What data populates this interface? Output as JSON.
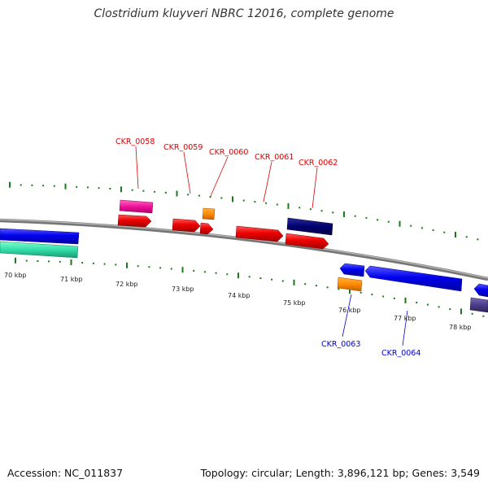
{
  "title": "Clostridium kluyveri NBRC 12016, complete genome",
  "footer": {
    "accession": "Accession: NC_011837",
    "summary": "Topology: circular; Length: 3,896,121 bp; Genes: 3,549"
  },
  "scale_labels": [
    "70 kbp",
    "71 kbp",
    "72 kbp",
    "73 kbp",
    "74 kbp",
    "75 kbp",
    "76 kbp",
    "77 kbp",
    "78 kbp"
  ],
  "gene_labels": [
    {
      "name": "CKR_0058",
      "strand": "forward",
      "color": "#dd0000"
    },
    {
      "name": "CKR_0059",
      "strand": "forward",
      "color": "#dd0000"
    },
    {
      "name": "CKR_0060",
      "strand": "forward",
      "color": "#dd0000"
    },
    {
      "name": "CKR_0061",
      "strand": "forward",
      "color": "#dd0000"
    },
    {
      "name": "CKR_0062",
      "strand": "forward",
      "color": "#dd0000"
    },
    {
      "name": "CKR_0063",
      "strand": "reverse",
      "color": "#0000cc"
    },
    {
      "name": "CKR_0064",
      "strand": "reverse",
      "color": "#0000cc"
    }
  ],
  "colors": {
    "backbone": "#888888",
    "tick": "#1a7a1a",
    "forward_cds": "#ee0000",
    "reverse_cds": "#0000ee",
    "trna": "#ff8c00",
    "rrna_pink": "#ee1199",
    "dark_navy": "#00006e",
    "teal": "#33ddaa",
    "slate": "#4b3d8a"
  }
}
